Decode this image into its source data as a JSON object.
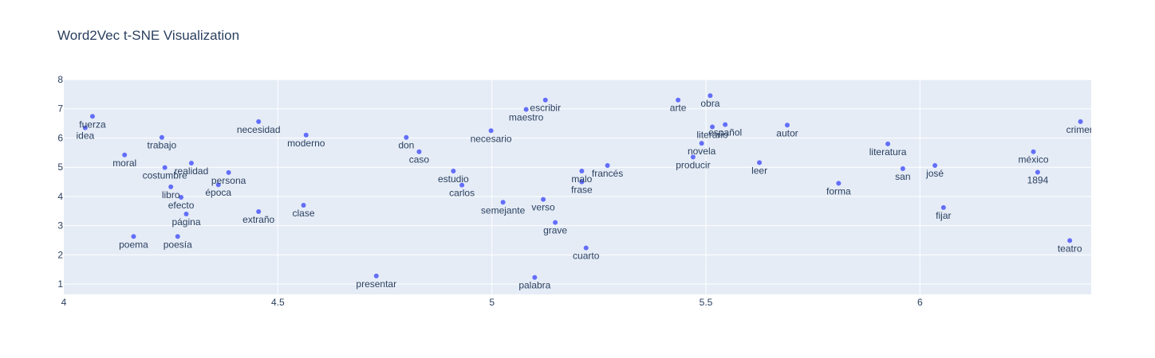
{
  "chart_data": {
    "type": "scatter",
    "title": "Word2Vec t-SNE Visualization",
    "xlabel": "",
    "ylabel": "",
    "xlim": [
      4.0,
      6.4
    ],
    "ylim": [
      0.65,
      8.0
    ],
    "x_ticks": [
      4,
      4.5,
      5,
      5.5,
      6
    ],
    "x_tick_labels": [
      "4",
      "4.5",
      "5",
      "5.5",
      "6"
    ],
    "y_ticks": [
      1,
      2,
      3,
      4,
      5,
      6,
      7,
      8
    ],
    "y_tick_labels": [
      "1",
      "2",
      "3",
      "4",
      "5",
      "6",
      "7",
      "8"
    ],
    "grid": true,
    "marker_color": "#636efa",
    "plot_bg": "#e5ecf6",
    "text_color": "#2a3f5f",
    "points": [
      {
        "label": "fuerza",
        "x": 4.067,
        "y": 6.74
      },
      {
        "label": "idea",
        "x": 4.05,
        "y": 6.35
      },
      {
        "label": "moral",
        "x": 4.142,
        "y": 5.42
      },
      {
        "label": "trabajo",
        "x": 4.229,
        "y": 6.02
      },
      {
        "label": "costumbre",
        "x": 4.236,
        "y": 4.99
      },
      {
        "label": "realidad",
        "x": 4.298,
        "y": 5.14
      },
      {
        "label": "libro",
        "x": 4.25,
        "y": 4.33
      },
      {
        "label": "efecto",
        "x": 4.274,
        "y": 3.97
      },
      {
        "label": "página",
        "x": 4.286,
        "y": 3.4
      },
      {
        "label": "poema",
        "x": 4.163,
        "y": 2.63
      },
      {
        "label": "poesía",
        "x": 4.266,
        "y": 2.63
      },
      {
        "label": "persona",
        "x": 4.385,
        "y": 4.82
      },
      {
        "label": "época",
        "x": 4.361,
        "y": 4.4
      },
      {
        "label": "necesidad",
        "x": 4.455,
        "y": 6.56
      },
      {
        "label": "extraño",
        "x": 4.455,
        "y": 3.48
      },
      {
        "label": "moderno",
        "x": 4.566,
        "y": 6.1
      },
      {
        "label": "clase",
        "x": 4.56,
        "y": 3.7
      },
      {
        "label": "presentar",
        "x": 4.73,
        "y": 1.28
      },
      {
        "label": "don",
        "x": 4.8,
        "y": 6.02
      },
      {
        "label": "caso",
        "x": 4.83,
        "y": 5.53
      },
      {
        "label": "estudio",
        "x": 4.91,
        "y": 4.87
      },
      {
        "label": "carlos",
        "x": 4.93,
        "y": 4.39
      },
      {
        "label": "necesario",
        "x": 4.998,
        "y": 6.25
      },
      {
        "label": "semejante",
        "x": 5.026,
        "y": 3.8
      },
      {
        "label": "escribir",
        "x": 5.125,
        "y": 7.3
      },
      {
        "label": "maestro",
        "x": 5.08,
        "y": 6.98
      },
      {
        "label": "verso",
        "x": 5.12,
        "y": 3.9
      },
      {
        "label": "grave",
        "x": 5.148,
        "y": 3.11
      },
      {
        "label": "palabra",
        "x": 5.1,
        "y": 1.23
      },
      {
        "label": "malo",
        "x": 5.21,
        "y": 4.87
      },
      {
        "label": "frase",
        "x": 5.21,
        "y": 4.5
      },
      {
        "label": "cuarto",
        "x": 5.22,
        "y": 2.24
      },
      {
        "label": "francés",
        "x": 5.27,
        "y": 5.06
      },
      {
        "label": "arte",
        "x": 5.435,
        "y": 7.3
      },
      {
        "label": "obra",
        "x": 5.51,
        "y": 7.45
      },
      {
        "label": "literario",
        "x": 5.515,
        "y": 6.38
      },
      {
        "label": "español",
        "x": 5.545,
        "y": 6.46
      },
      {
        "label": "novela",
        "x": 5.49,
        "y": 5.82
      },
      {
        "label": "producir",
        "x": 5.47,
        "y": 5.35
      },
      {
        "label": "leer",
        "x": 5.625,
        "y": 5.16
      },
      {
        "label": "autor",
        "x": 5.69,
        "y": 6.44
      },
      {
        "label": "forma",
        "x": 5.81,
        "y": 4.45
      },
      {
        "label": "literatura",
        "x": 5.925,
        "y": 5.8
      },
      {
        "label": "san",
        "x": 5.96,
        "y": 4.95
      },
      {
        "label": "josé",
        "x": 6.035,
        "y": 5.06
      },
      {
        "label": "fijar",
        "x": 6.055,
        "y": 3.62
      },
      {
        "label": "méxico",
        "x": 6.265,
        "y": 5.53
      },
      {
        "label": "1894",
        "x": 6.275,
        "y": 4.83
      },
      {
        "label": "teatro",
        "x": 6.35,
        "y": 2.49
      },
      {
        "label": "crimen",
        "x": 6.375,
        "y": 6.56
      }
    ]
  }
}
